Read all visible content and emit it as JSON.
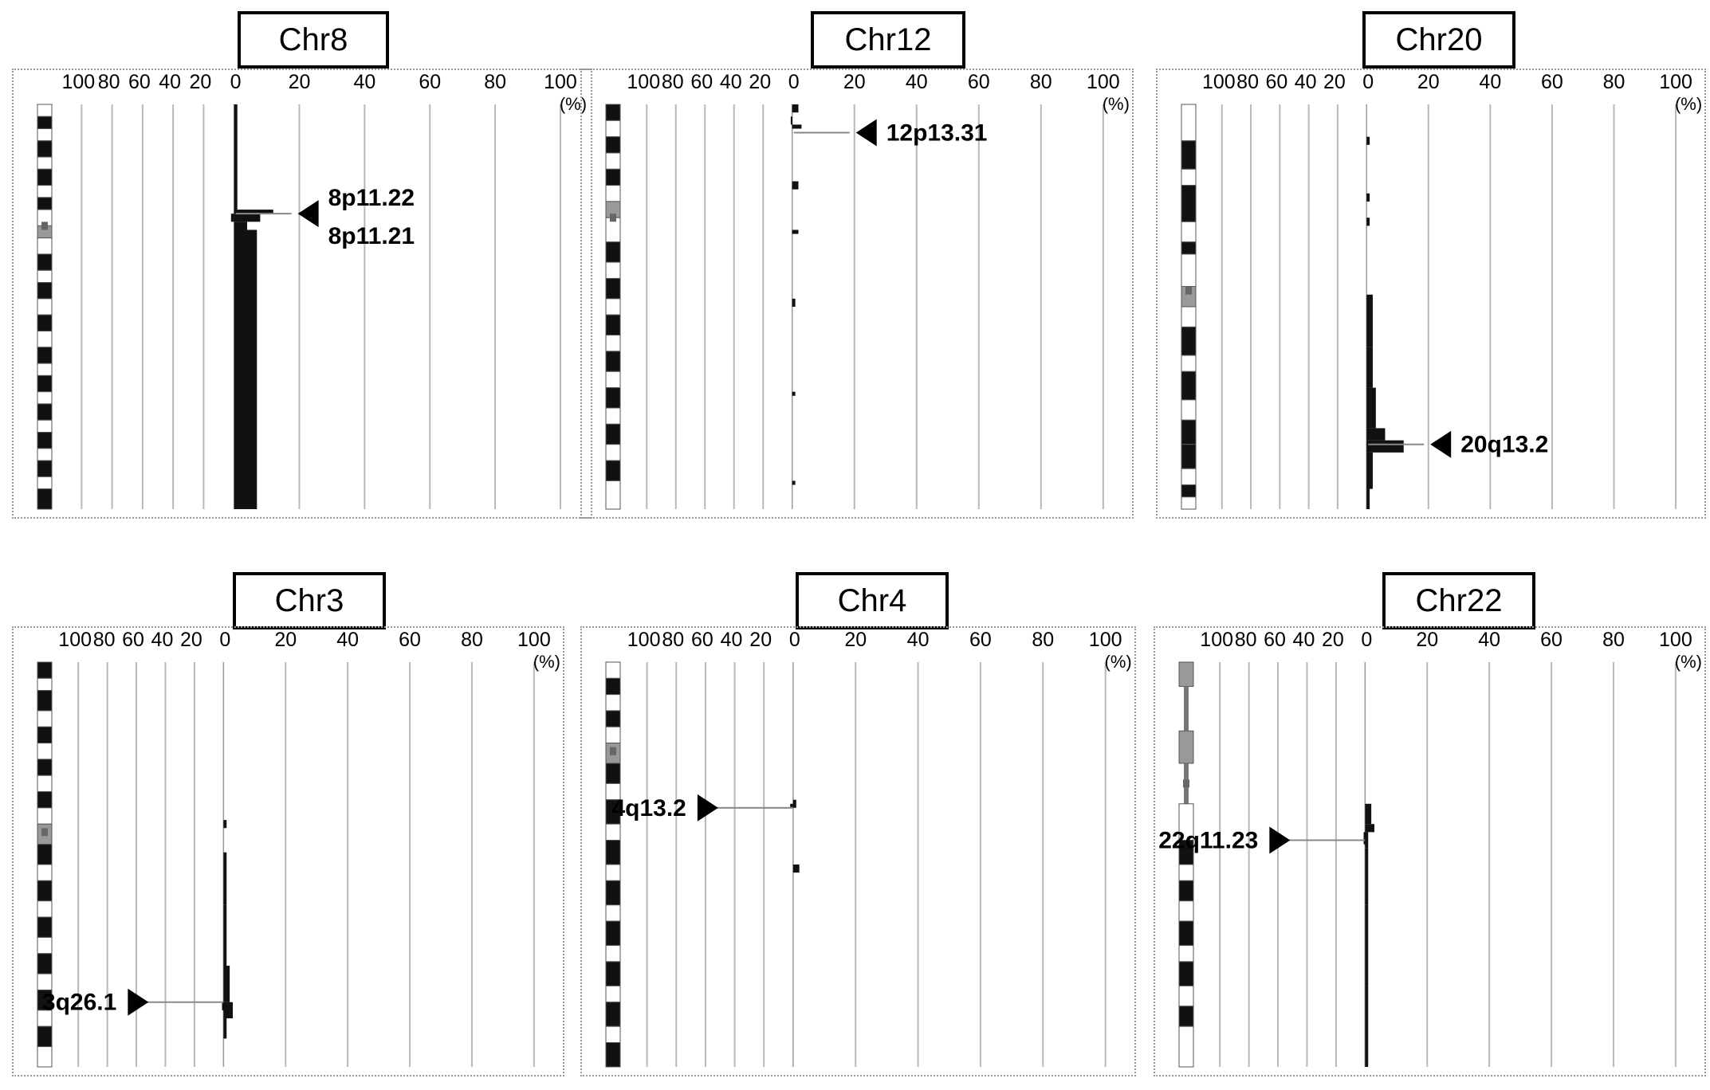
{
  "chart_data": [
    {
      "type": "bar",
      "title": "Chr8",
      "left_ticks": [
        "100",
        "80",
        "60",
        "40",
        "20"
      ],
      "right_ticks": [
        "0",
        "20",
        "40",
        "60",
        "80",
        "100"
      ],
      "unit": "(%)",
      "xlim": [
        -100,
        100
      ],
      "ideogram": [
        [
          0,
          0.03,
          "w"
        ],
        [
          0.03,
          0.06,
          "b"
        ],
        [
          0.06,
          0.09,
          "w"
        ],
        [
          0.09,
          0.13,
          "b"
        ],
        [
          0.13,
          0.16,
          "w"
        ],
        [
          0.16,
          0.2,
          "b"
        ],
        [
          0.2,
          0.23,
          "w"
        ],
        [
          0.23,
          0.26,
          "b"
        ],
        [
          0.26,
          0.3,
          "w"
        ],
        [
          0.3,
          0.33,
          "g"
        ],
        [
          0.33,
          0.37,
          "w"
        ],
        [
          0.37,
          0.41,
          "b"
        ],
        [
          0.41,
          0.44,
          "w"
        ],
        [
          0.44,
          0.48,
          "b"
        ],
        [
          0.48,
          0.52,
          "w"
        ],
        [
          0.52,
          0.56,
          "b"
        ],
        [
          0.56,
          0.6,
          "w"
        ],
        [
          0.6,
          0.64,
          "b"
        ],
        [
          0.64,
          0.67,
          "w"
        ],
        [
          0.67,
          0.71,
          "b"
        ],
        [
          0.71,
          0.74,
          "w"
        ],
        [
          0.74,
          0.78,
          "b"
        ],
        [
          0.78,
          0.81,
          "w"
        ],
        [
          0.81,
          0.85,
          "b"
        ],
        [
          0.85,
          0.88,
          "w"
        ],
        [
          0.88,
          0.92,
          "b"
        ],
        [
          0.92,
          0.95,
          "w"
        ],
        [
          0.95,
          1,
          "b"
        ]
      ],
      "centromere": 0.3,
      "gain": [
        [
          0,
          0.26,
          1
        ],
        [
          0.26,
          0.27,
          12
        ],
        [
          0.27,
          0.29,
          8
        ],
        [
          0.29,
          0.31,
          4
        ],
        [
          0.31,
          1,
          7
        ]
      ],
      "loss": [
        [
          0.27,
          0.29,
          2
        ]
      ],
      "markers": [
        {
          "labels": [
            "8p11.22",
            "8p11.21"
          ],
          "pos": 0.27,
          "side": "right"
        }
      ]
    },
    {
      "type": "bar",
      "title": "Chr12",
      "left_ticks": [
        "100",
        "80",
        "60",
        "40",
        "20"
      ],
      "right_ticks": [
        "0",
        "20",
        "40",
        "60",
        "80",
        "100"
      ],
      "unit": "(%)",
      "xlim": [
        -100,
        100
      ],
      "ideogram": [
        [
          0,
          0.04,
          "b"
        ],
        [
          0.04,
          0.08,
          "w"
        ],
        [
          0.08,
          0.12,
          "b"
        ],
        [
          0.12,
          0.16,
          "w"
        ],
        [
          0.16,
          0.2,
          "b"
        ],
        [
          0.2,
          0.24,
          "w"
        ],
        [
          0.24,
          0.28,
          "g"
        ],
        [
          0.28,
          0.34,
          "w"
        ],
        [
          0.34,
          0.39,
          "b"
        ],
        [
          0.39,
          0.43,
          "w"
        ],
        [
          0.43,
          0.48,
          "b"
        ],
        [
          0.48,
          0.52,
          "w"
        ],
        [
          0.52,
          0.57,
          "b"
        ],
        [
          0.57,
          0.61,
          "w"
        ],
        [
          0.61,
          0.66,
          "b"
        ],
        [
          0.66,
          0.7,
          "w"
        ],
        [
          0.7,
          0.75,
          "b"
        ],
        [
          0.75,
          0.79,
          "w"
        ],
        [
          0.79,
          0.84,
          "b"
        ],
        [
          0.84,
          0.88,
          "w"
        ],
        [
          0.88,
          0.93,
          "b"
        ],
        [
          0.93,
          1,
          "w"
        ]
      ],
      "centromere": 0.28,
      "gain": [
        [
          0,
          0.02,
          2
        ],
        [
          0.05,
          0.06,
          3
        ],
        [
          0.19,
          0.21,
          2
        ],
        [
          0.31,
          0.32,
          2
        ],
        [
          0.48,
          0.5,
          1
        ],
        [
          0.71,
          0.72,
          1
        ],
        [
          0.93,
          0.94,
          1
        ]
      ],
      "loss": [
        [
          0.03,
          0.05,
          1
        ]
      ],
      "markers": [
        {
          "labels": [
            "12p13.31"
          ],
          "pos": 0.07,
          "side": "right"
        }
      ]
    },
    {
      "type": "bar",
      "title": "Chr20",
      "left_ticks": [
        "100",
        "80",
        "60",
        "40",
        "20"
      ],
      "right_ticks": [
        "0",
        "20",
        "40",
        "60",
        "80",
        "100"
      ],
      "unit": "(%)",
      "xlim": [
        -100,
        100
      ],
      "ideogram": [
        [
          0,
          0.09,
          "w"
        ],
        [
          0.09,
          0.16,
          "b"
        ],
        [
          0.16,
          0.2,
          "w"
        ],
        [
          0.2,
          0.29,
          "b"
        ],
        [
          0.29,
          0.34,
          "w"
        ],
        [
          0.34,
          0.37,
          "b"
        ],
        [
          0.37,
          0.45,
          "w"
        ],
        [
          0.45,
          0.5,
          "g"
        ],
        [
          0.5,
          0.55,
          "w"
        ],
        [
          0.55,
          0.62,
          "b"
        ],
        [
          0.62,
          0.66,
          "w"
        ],
        [
          0.66,
          0.73,
          "b"
        ],
        [
          0.73,
          0.78,
          "w"
        ],
        [
          0.78,
          0.84,
          "b"
        ],
        [
          0.84,
          0.9,
          "b"
        ],
        [
          0.9,
          0.94,
          "w"
        ],
        [
          0.94,
          0.97,
          "b"
        ],
        [
          0.97,
          1,
          "w"
        ]
      ],
      "centromere": 0.46,
      "gain": [
        [
          0.08,
          0.1,
          1
        ],
        [
          0.22,
          0.24,
          1
        ],
        [
          0.28,
          0.3,
          1
        ],
        [
          0.47,
          0.5,
          2
        ],
        [
          0.5,
          0.6,
          2
        ],
        [
          0.6,
          0.7,
          2
        ],
        [
          0.7,
          0.8,
          3
        ],
        [
          0.8,
          0.83,
          6
        ],
        [
          0.83,
          0.86,
          12
        ],
        [
          0.86,
          0.95,
          2
        ],
        [
          0.95,
          1,
          1
        ]
      ],
      "loss": [],
      "markers": [
        {
          "labels": [
            "20q13.2"
          ],
          "pos": 0.84,
          "side": "right"
        }
      ]
    },
    {
      "type": "bar",
      "title": "Chr3",
      "left_ticks": [
        "100",
        "80",
        "60",
        "40",
        "20"
      ],
      "right_ticks": [
        "0",
        "20",
        "40",
        "60",
        "80",
        "100"
      ],
      "unit": "(%)",
      "xlim": [
        -100,
        100
      ],
      "ideogram": [
        [
          0,
          0.04,
          "b"
        ],
        [
          0.04,
          0.07,
          "w"
        ],
        [
          0.07,
          0.12,
          "b"
        ],
        [
          0.12,
          0.16,
          "w"
        ],
        [
          0.16,
          0.2,
          "b"
        ],
        [
          0.2,
          0.24,
          "w"
        ],
        [
          0.24,
          0.28,
          "b"
        ],
        [
          0.28,
          0.32,
          "w"
        ],
        [
          0.32,
          0.36,
          "b"
        ],
        [
          0.36,
          0.4,
          "w"
        ],
        [
          0.4,
          0.45,
          "g"
        ],
        [
          0.45,
          0.5,
          "b"
        ],
        [
          0.5,
          0.54,
          "w"
        ],
        [
          0.54,
          0.59,
          "b"
        ],
        [
          0.59,
          0.63,
          "w"
        ],
        [
          0.63,
          0.68,
          "b"
        ],
        [
          0.68,
          0.72,
          "w"
        ],
        [
          0.72,
          0.77,
          "b"
        ],
        [
          0.77,
          0.81,
          "w"
        ],
        [
          0.81,
          0.86,
          "b"
        ],
        [
          0.86,
          0.9,
          "w"
        ],
        [
          0.9,
          0.95,
          "b"
        ],
        [
          0.95,
          1,
          "w"
        ]
      ],
      "centromere": 0.42,
      "gain": [
        [
          0.39,
          0.41,
          1
        ],
        [
          0.47,
          0.6,
          1
        ],
        [
          0.6,
          0.75,
          1
        ],
        [
          0.75,
          0.84,
          2
        ],
        [
          0.84,
          0.88,
          3
        ],
        [
          0.88,
          0.93,
          1
        ]
      ],
      "loss": [
        [
          0.84,
          0.86,
          1
        ]
      ],
      "markers": [
        {
          "labels": [
            "3q26.1"
          ],
          "pos": 0.84,
          "side": "left"
        }
      ]
    },
    {
      "type": "bar",
      "title": "Chr4",
      "left_ticks": [
        "100",
        "80",
        "60",
        "40",
        "20"
      ],
      "right_ticks": [
        "0",
        "20",
        "40",
        "60",
        "80",
        "100"
      ],
      "unit": "(%)",
      "xlim": [
        -100,
        100
      ],
      "ideogram": [
        [
          0,
          0.04,
          "w"
        ],
        [
          0.04,
          0.08,
          "b"
        ],
        [
          0.08,
          0.12,
          "w"
        ],
        [
          0.12,
          0.16,
          "b"
        ],
        [
          0.16,
          0.2,
          "w"
        ],
        [
          0.2,
          0.25,
          "g"
        ],
        [
          0.25,
          0.3,
          "b"
        ],
        [
          0.3,
          0.34,
          "w"
        ],
        [
          0.34,
          0.4,
          "b"
        ],
        [
          0.4,
          0.44,
          "w"
        ],
        [
          0.44,
          0.5,
          "b"
        ],
        [
          0.5,
          0.54,
          "w"
        ],
        [
          0.54,
          0.6,
          "b"
        ],
        [
          0.6,
          0.64,
          "w"
        ],
        [
          0.64,
          0.7,
          "b"
        ],
        [
          0.7,
          0.74,
          "w"
        ],
        [
          0.74,
          0.8,
          "b"
        ],
        [
          0.8,
          0.84,
          "w"
        ],
        [
          0.84,
          0.9,
          "b"
        ],
        [
          0.9,
          0.94,
          "w"
        ],
        [
          0.94,
          1,
          "b"
        ]
      ],
      "centromere": 0.22,
      "gain": [
        [
          0.34,
          0.36,
          1
        ],
        [
          0.5,
          0.52,
          2
        ]
      ],
      "loss": [
        [
          0.35,
          0.36,
          2
        ]
      ],
      "markers": [
        {
          "labels": [
            "4q13.2"
          ],
          "pos": 0.36,
          "side": "left"
        }
      ]
    },
    {
      "type": "bar",
      "title": "Chr22",
      "left_ticks": [
        "100",
        "80",
        "60",
        "40",
        "20"
      ],
      "right_ticks": [
        "0",
        "20",
        "40",
        "60",
        "80",
        "100"
      ],
      "unit": "(%)",
      "xlim": [
        -100,
        100
      ],
      "ideogram": [
        [
          0,
          0.06,
          "g"
        ],
        [
          0.06,
          0.17,
          "line"
        ],
        [
          0.17,
          0.25,
          "g"
        ],
        [
          0.25,
          0.35,
          "line"
        ],
        [
          0.35,
          0.44,
          "w"
        ],
        [
          0.44,
          0.5,
          "b"
        ],
        [
          0.5,
          0.54,
          "w"
        ],
        [
          0.54,
          0.59,
          "b"
        ],
        [
          0.59,
          0.64,
          "w"
        ],
        [
          0.64,
          0.7,
          "b"
        ],
        [
          0.7,
          0.74,
          "w"
        ],
        [
          0.74,
          0.8,
          "b"
        ],
        [
          0.8,
          0.85,
          "w"
        ],
        [
          0.85,
          0.9,
          "b"
        ],
        [
          0.9,
          1,
          "w"
        ]
      ],
      "centromere": 0.3,
      "gain": [
        [
          0.35,
          0.4,
          2
        ],
        [
          0.4,
          0.42,
          3
        ],
        [
          0.42,
          0.46,
          1
        ],
        [
          0.46,
          0.6,
          1
        ],
        [
          0.6,
          0.8,
          1
        ],
        [
          0.8,
          1,
          1
        ]
      ],
      "loss": [
        [
          0.42,
          0.45,
          1
        ]
      ],
      "markers": [
        {
          "labels": [
            "22q11.23"
          ],
          "pos": 0.44,
          "side": "left"
        }
      ]
    }
  ]
}
